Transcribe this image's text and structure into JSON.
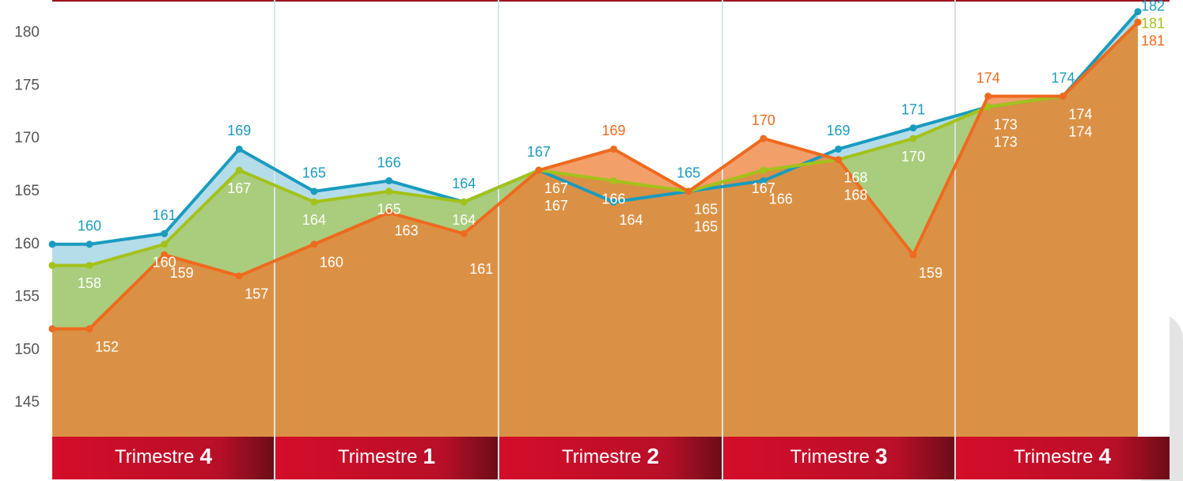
{
  "chart_data": {
    "type": "area",
    "categories": [
      null,
      null,
      null,
      null,
      null,
      null,
      null,
      null,
      null,
      null,
      null,
      null,
      null,
      null,
      null,
      null
    ],
    "series": [
      {
        "color": "#1a9bbf",
        "fill": "#b5dce9",
        "values": [
          160,
          160,
          161,
          169,
          165,
          166,
          164,
          167,
          164,
          165,
          166,
          169,
          171,
          173,
          174,
          182
        ]
      },
      {
        "color": "#a3c21a",
        "fill": "#a9cd7c",
        "values": [
          158,
          158,
          160,
          167,
          164,
          165,
          164,
          167,
          166,
          165,
          167,
          168,
          170,
          173,
          174,
          181
        ]
      },
      {
        "color": "#ee6a1f",
        "fill": "#ee7a30",
        "values": [
          152,
          152,
          159,
          157,
          160,
          163,
          161,
          167,
          169,
          165,
          170,
          168,
          159,
          174,
          174,
          181
        ]
      }
    ],
    "ylim": [
      141.8,
      183.1
    ],
    "yticks": [
      145,
      150,
      155,
      160,
      165,
      170,
      175,
      180
    ],
    "periods": [
      {
        "label": "Trimestre",
        "number": "4"
      },
      {
        "label": "Trimestre",
        "number": "1"
      },
      {
        "label": "Trimestre",
        "number": "2"
      },
      {
        "label": "Trimestre",
        "number": "3"
      },
      {
        "label": "Trimestre",
        "number": "4"
      }
    ]
  }
}
